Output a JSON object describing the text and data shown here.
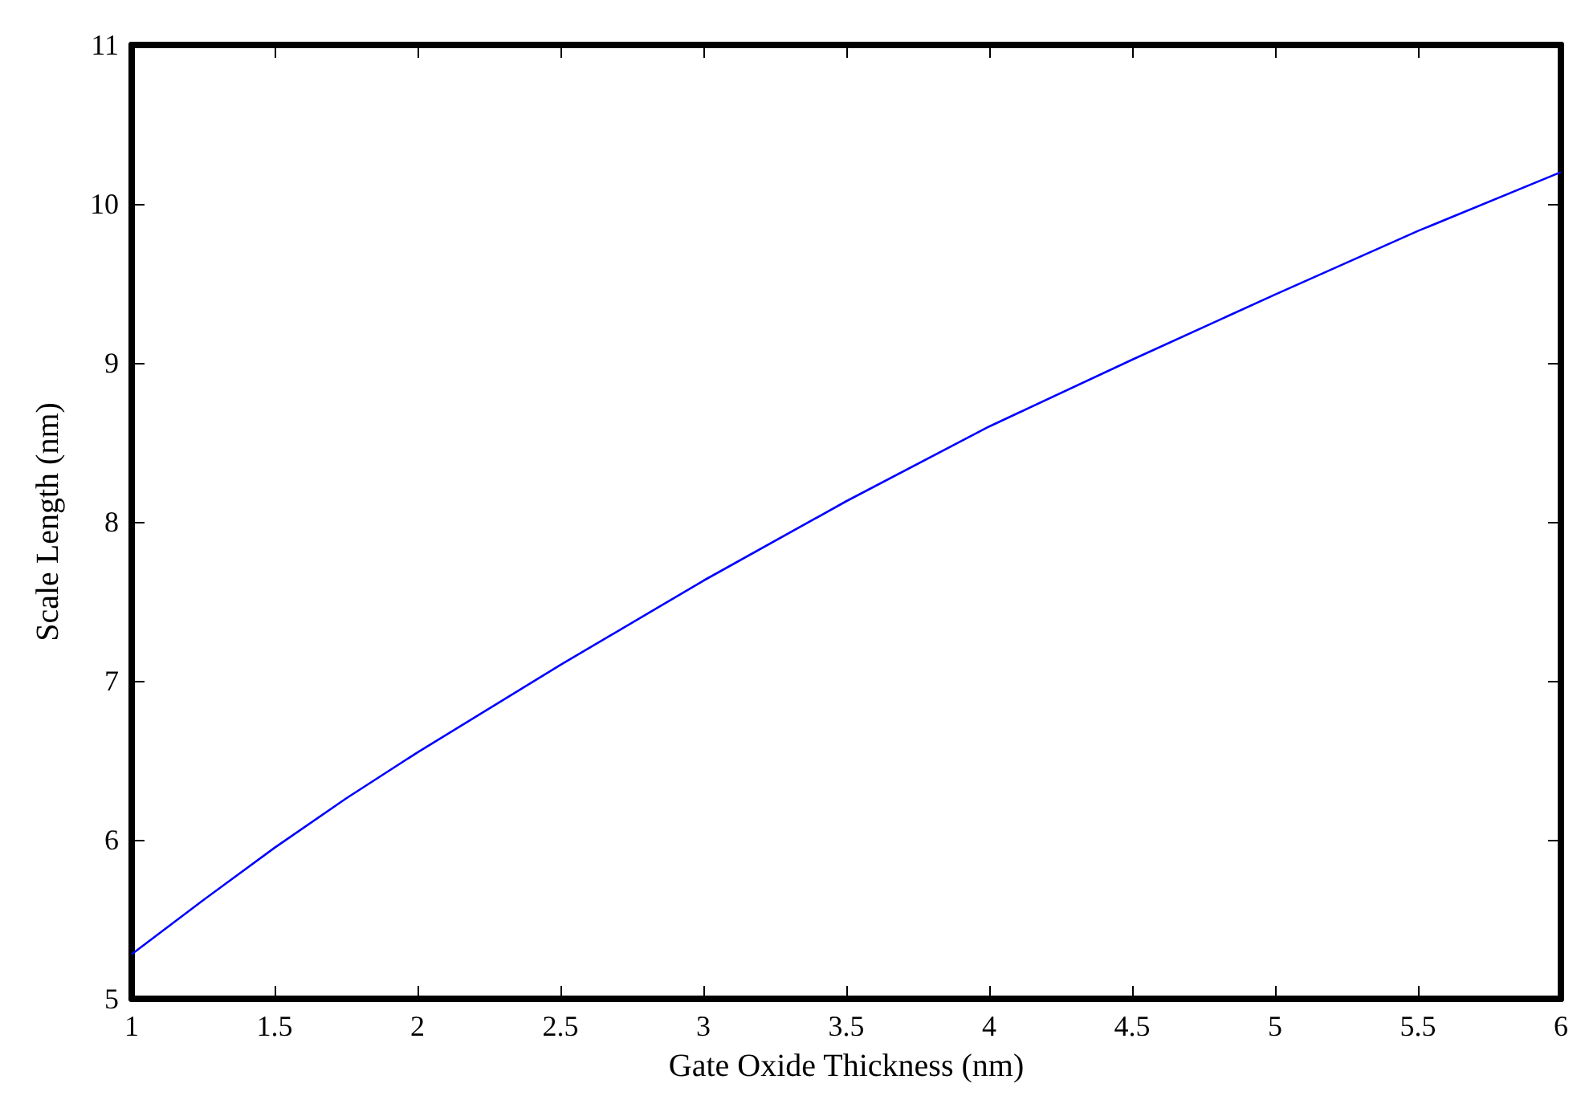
{
  "chart_data": {
    "type": "line",
    "xlabel": "Gate Oxide Thickness (nm)",
    "ylabel": "Scale Length (nm)",
    "x": [
      1,
      1.25,
      1.5,
      1.75,
      2,
      2.5,
      3,
      3.5,
      4,
      4.5,
      5,
      5.5,
      6
    ],
    "series": [
      {
        "color": "#0000ff",
        "values": [
          5.28,
          5.62,
          5.95,
          6.26,
          6.55,
          7.1,
          7.63,
          8.13,
          8.6,
          9.02,
          9.43,
          9.83,
          10.2
        ]
      }
    ],
    "xlim": [
      1,
      6
    ],
    "xticks": [
      1,
      1.5,
      2,
      2.5,
      3,
      3.5,
      4,
      4.5,
      5,
      5.5,
      6
    ],
    "ylim": [
      5,
      11
    ],
    "yticks": [
      5,
      6,
      7,
      8,
      9,
      10,
      11
    ],
    "grid": false,
    "marker": "none",
    "line_style": "solid"
  }
}
